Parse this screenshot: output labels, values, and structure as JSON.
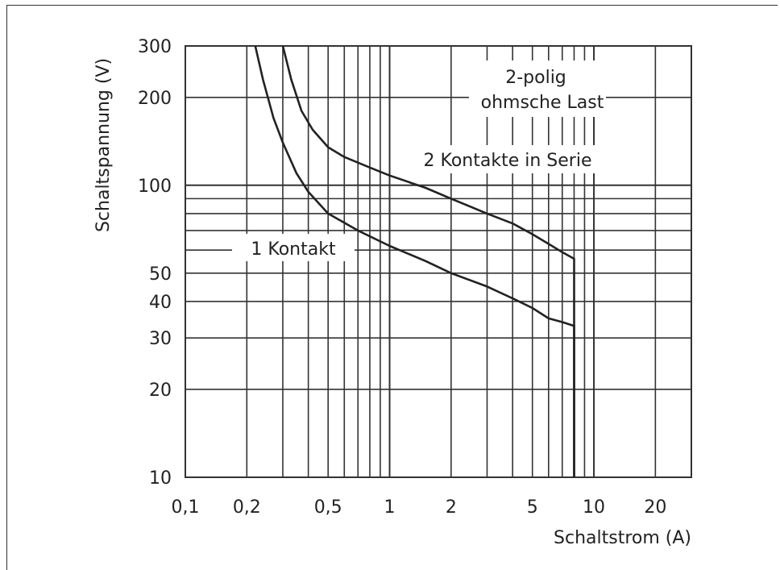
{
  "chart_data": {
    "type": "line",
    "title": "",
    "xlabel": "Schaltstrom (A)",
    "ylabel": "Schaltspannung (V)",
    "x_scale": "log",
    "y_scale": "log",
    "xlim": [
      0.1,
      30
    ],
    "ylim": [
      10,
      300
    ],
    "grid": true,
    "x_ticks": [
      {
        "value": 0.1,
        "label": "0,1"
      },
      {
        "value": 0.2,
        "label": "0,2"
      },
      {
        "value": 0.5,
        "label": "0,5"
      },
      {
        "value": 1,
        "label": "1"
      },
      {
        "value": 2,
        "label": "2"
      },
      {
        "value": 5,
        "label": "5"
      },
      {
        "value": 10,
        "label": "10"
      },
      {
        "value": 20,
        "label": "20"
      }
    ],
    "y_ticks": [
      {
        "value": 10,
        "label": "10"
      },
      {
        "value": 20,
        "label": "20"
      },
      {
        "value": 30,
        "label": "30"
      },
      {
        "value": 40,
        "label": "40"
      },
      {
        "value": 50,
        "label": "50"
      },
      {
        "value": 100,
        "label": "100"
      },
      {
        "value": 200,
        "label": "200"
      },
      {
        "value": 300,
        "label": "300"
      }
    ],
    "annotation": "2-polig\nohmsche Last",
    "series": [
      {
        "name": "1 Kontakt",
        "x": [
          0.22,
          0.24,
          0.27,
          0.3,
          0.35,
          0.4,
          0.5,
          0.7,
          1.0,
          1.5,
          2.0,
          3.0,
          4.0,
          5.0,
          6.0,
          7.0,
          8.0,
          8.0
        ],
        "y": [
          300,
          230,
          170,
          140,
          110,
          95,
          80,
          70,
          62,
          55,
          50,
          45,
          41,
          38,
          35,
          34,
          33,
          10
        ]
      },
      {
        "name": "2 Kontakte in Serie",
        "x": [
          0.3,
          0.33,
          0.37,
          0.42,
          0.5,
          0.6,
          0.8,
          1.0,
          1.5,
          2.0,
          3.0,
          4.0,
          5.0,
          6.0,
          7.0,
          8.0,
          8.0
        ],
        "y": [
          300,
          230,
          180,
          155,
          135,
          125,
          115,
          108,
          98,
          90,
          80,
          74,
          68,
          63,
          59,
          56,
          10
        ]
      }
    ]
  }
}
